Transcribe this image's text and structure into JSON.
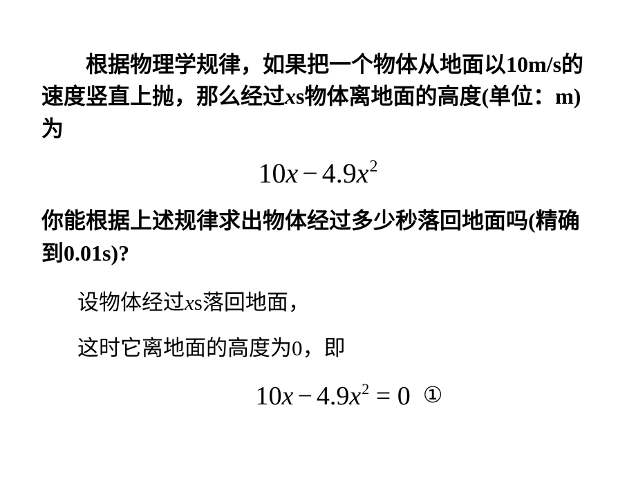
{
  "para1_a": "根据物理学规律，如果把一个物体从地面以",
  "para1_b": "10m/s",
  "para1_c": "的速度竖直上抛，那么经过",
  "para1_d": "x",
  "para1_e": "s",
  "para1_f": "物体离地面的高度(单位：",
  "para1_g": "m)",
  "para1_h": "为",
  "formula1_a": "10",
  "formula1_x1": "x",
  "formula1_minus": "−",
  "formula1_b": "4.9",
  "formula1_x2": "x",
  "formula1_sup": "2",
  "para2_a": "你能根据上述规律求出物体经过多少秒落回地面吗(精确到",
  "para2_b": "0.01s)?",
  "answer1_a": "设物体经过",
  "answer1_b": "x",
  "answer1_c": "s",
  "answer1_d": "落回地面，",
  "answer2": "这时它离地面的高度为0，即",
  "formula2_a": "10",
  "formula2_x1": "x",
  "formula2_minus": "−",
  "formula2_b": "4.9",
  "formula2_x2": "x",
  "formula2_sup": "2",
  "formula2_eq": "=",
  "formula2_zero": "0",
  "formula2_label": "①"
}
